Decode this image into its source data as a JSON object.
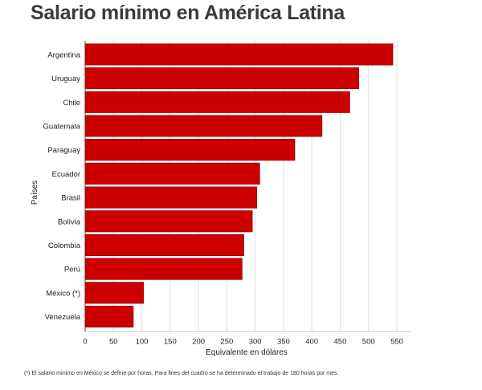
{
  "colors": {
    "bar": "#cc0000",
    "bar_stroke": "#7a0000",
    "grid": "#e0e0e0",
    "axis": "#444444"
  },
  "footnote": "(*) El salario mínimo en México se define por horas. Para fines del cuadro se ha determinado el trabajo de 180 horas por mes.",
  "chart_data": {
    "type": "bar",
    "orientation": "horizontal",
    "title": "Salario mínimo en América Latina",
    "xlabel": "Equivalente en dólares",
    "ylabel": "Países",
    "categories": [
      "Argentina",
      "Uruguay",
      "Chile",
      "Guatemala",
      "Paraguay",
      "Ecuador",
      "Brasil",
      "Bolivia",
      "Colombia",
      "Perú",
      "México (*)",
      "Venezuela"
    ],
    "values": [
      543,
      483,
      467,
      418,
      370,
      308,
      303,
      295,
      280,
      277,
      103,
      85
    ],
    "xlim": [
      0,
      575
    ],
    "xticks": [
      0,
      50,
      100,
      150,
      200,
      250,
      300,
      350,
      400,
      450,
      500,
      550
    ],
    "grid": true
  }
}
